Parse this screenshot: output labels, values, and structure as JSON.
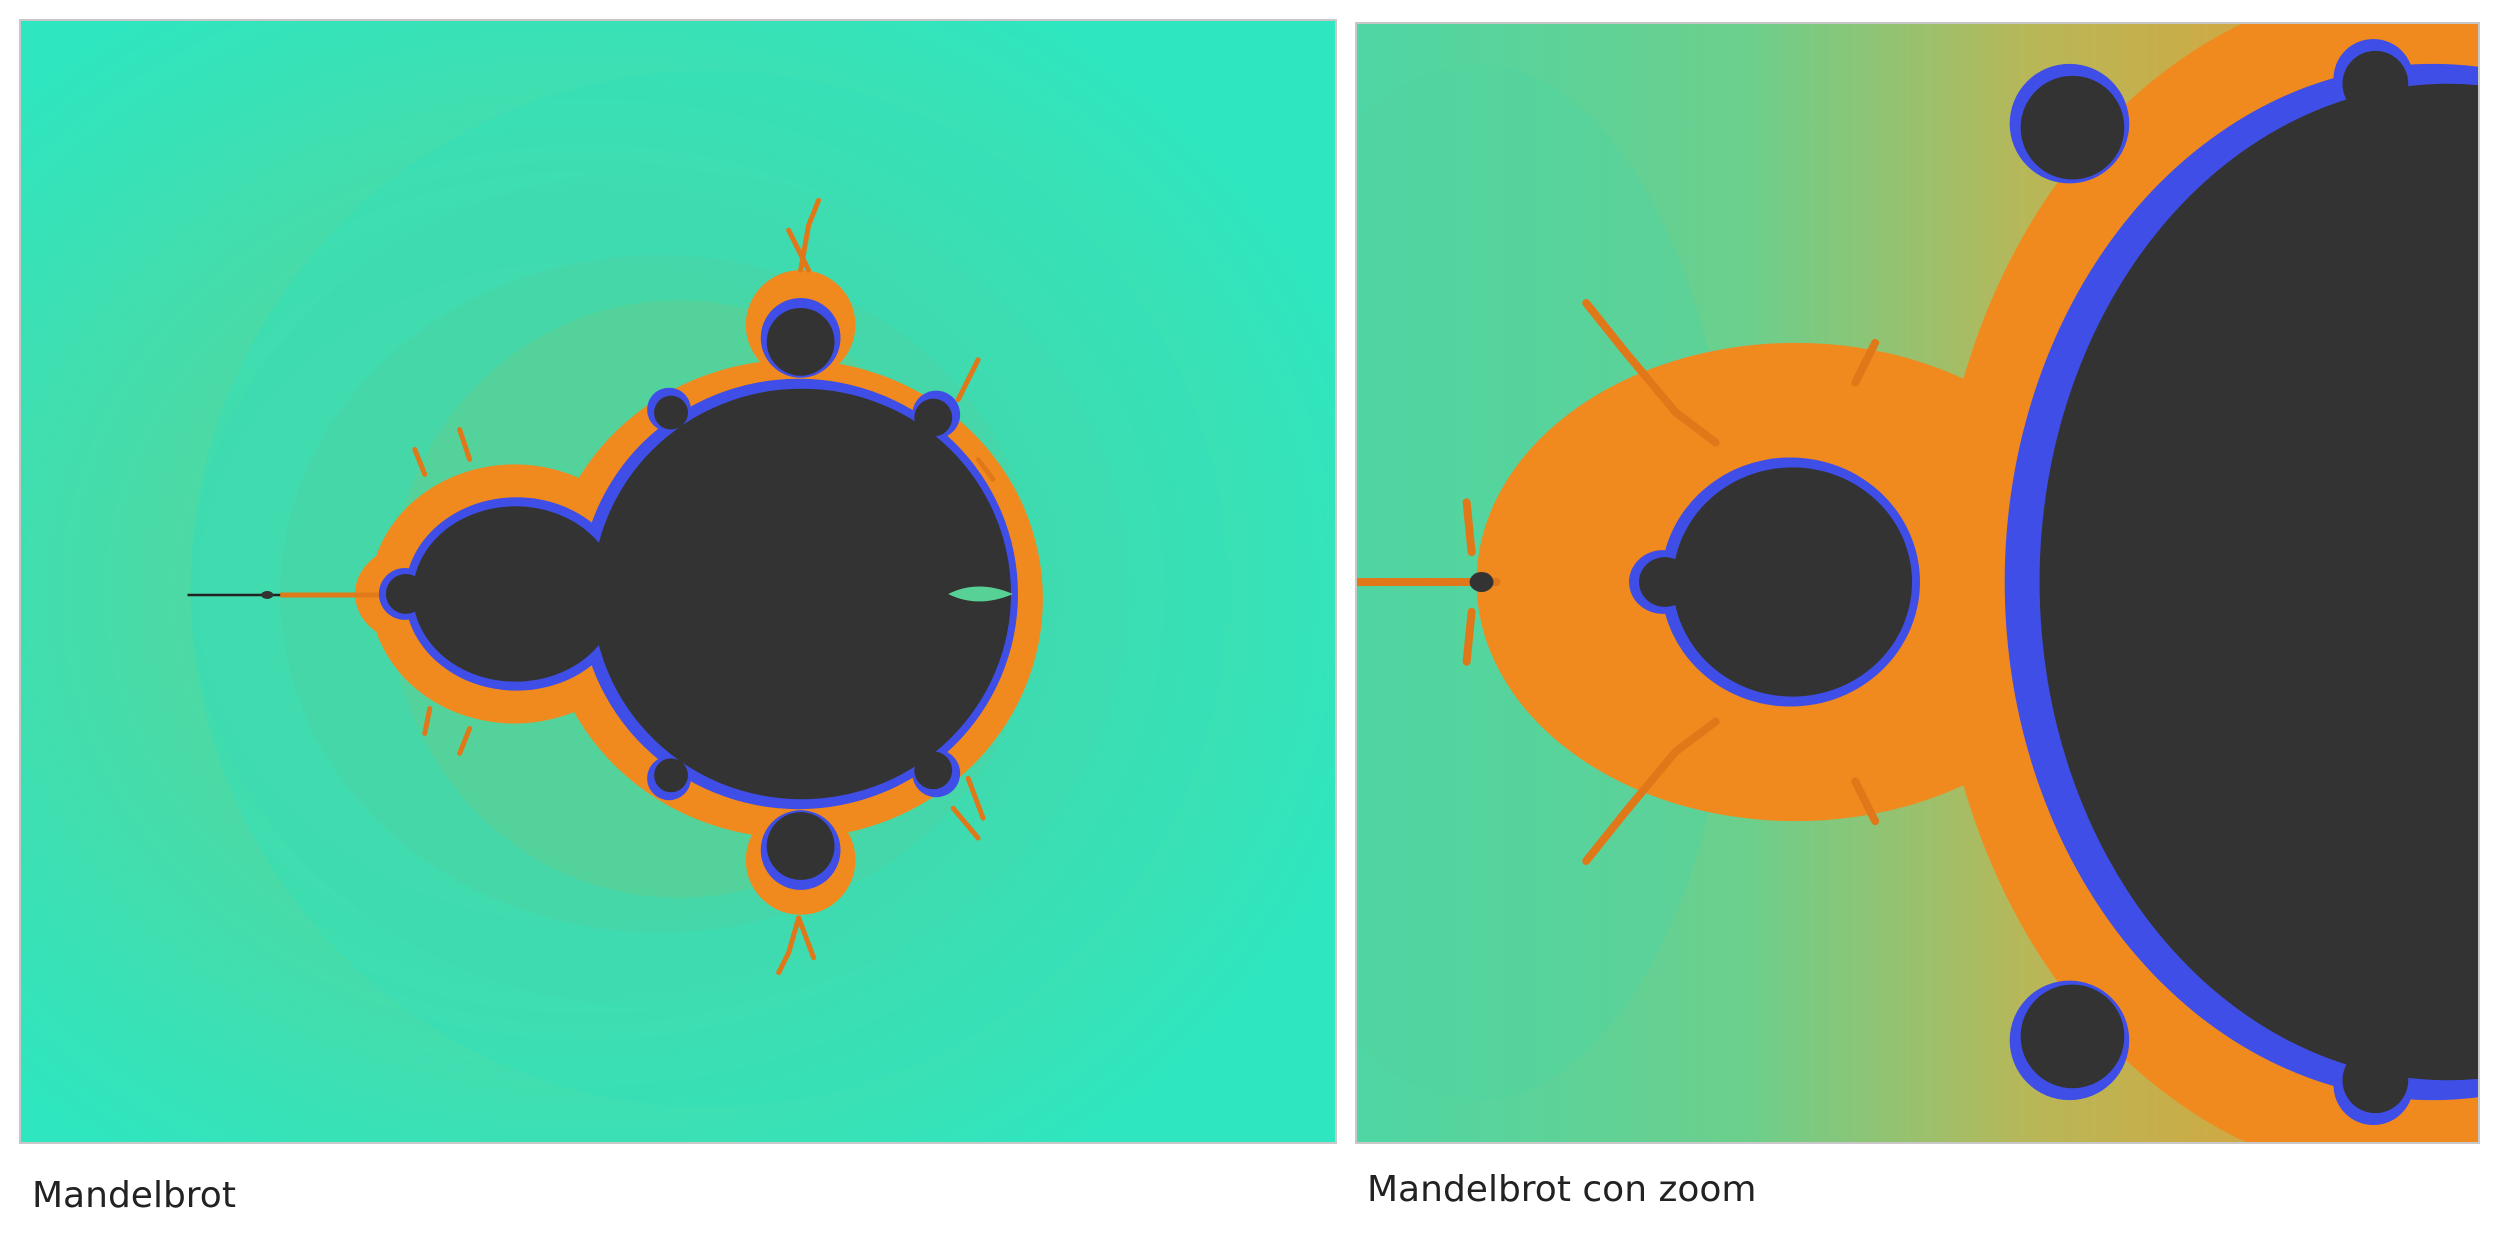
{
  "figures": [
    {
      "caption": "Mandelbrot"
    },
    {
      "caption": "Mandelbrot con zoom"
    }
  ],
  "colors": {
    "background_far": "#2ee6c0",
    "background_mid": "#3ddbb2",
    "background_near": "#55d59c",
    "edge_orange": "#f08a1f",
    "edge_blue": "#3f4ee6",
    "set_interior": "#333333"
  }
}
